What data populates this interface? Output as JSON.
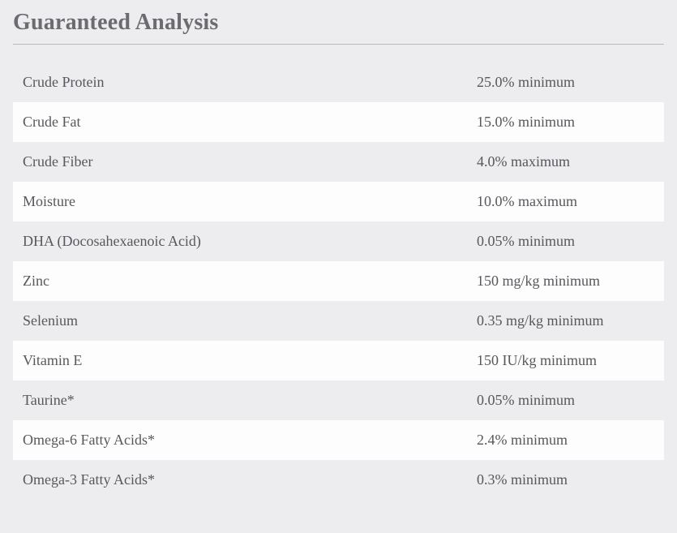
{
  "title": "Guaranteed Analysis",
  "rows": [
    {
      "name": "Crude Protein",
      "value": "25.0% minimum"
    },
    {
      "name": "Crude Fat",
      "value": "15.0% minimum"
    },
    {
      "name": "Crude Fiber",
      "value": "4.0% maximum"
    },
    {
      "name": "Moisture",
      "value": "10.0% maximum"
    },
    {
      "name": "DHA (Docosahexaenoic Acid)",
      "value": "0.05% minimum"
    },
    {
      "name": "Zinc",
      "value": "150 mg/kg minimum"
    },
    {
      "name": "Selenium",
      "value": "0.35 mg/kg minimum"
    },
    {
      "name": "Vitamin E",
      "value": "150 IU/kg minimum"
    },
    {
      "name": "Taurine*",
      "value": "0.05% minimum"
    },
    {
      "name": "Omega-6 Fatty Acids*",
      "value": "2.4% minimum"
    },
    {
      "name": "Omega-3 Fatty Acids*",
      "value": "0.3% minimum"
    }
  ],
  "colors": {
    "background": "#ededf0",
    "row_alt": "#fdfdfe",
    "text": "#58585c",
    "title": "#6b6b70",
    "divider": "#b8b8bb"
  },
  "typography": {
    "title_fontsize": 28,
    "row_fontsize": 18,
    "font_family": "Georgia, serif"
  }
}
